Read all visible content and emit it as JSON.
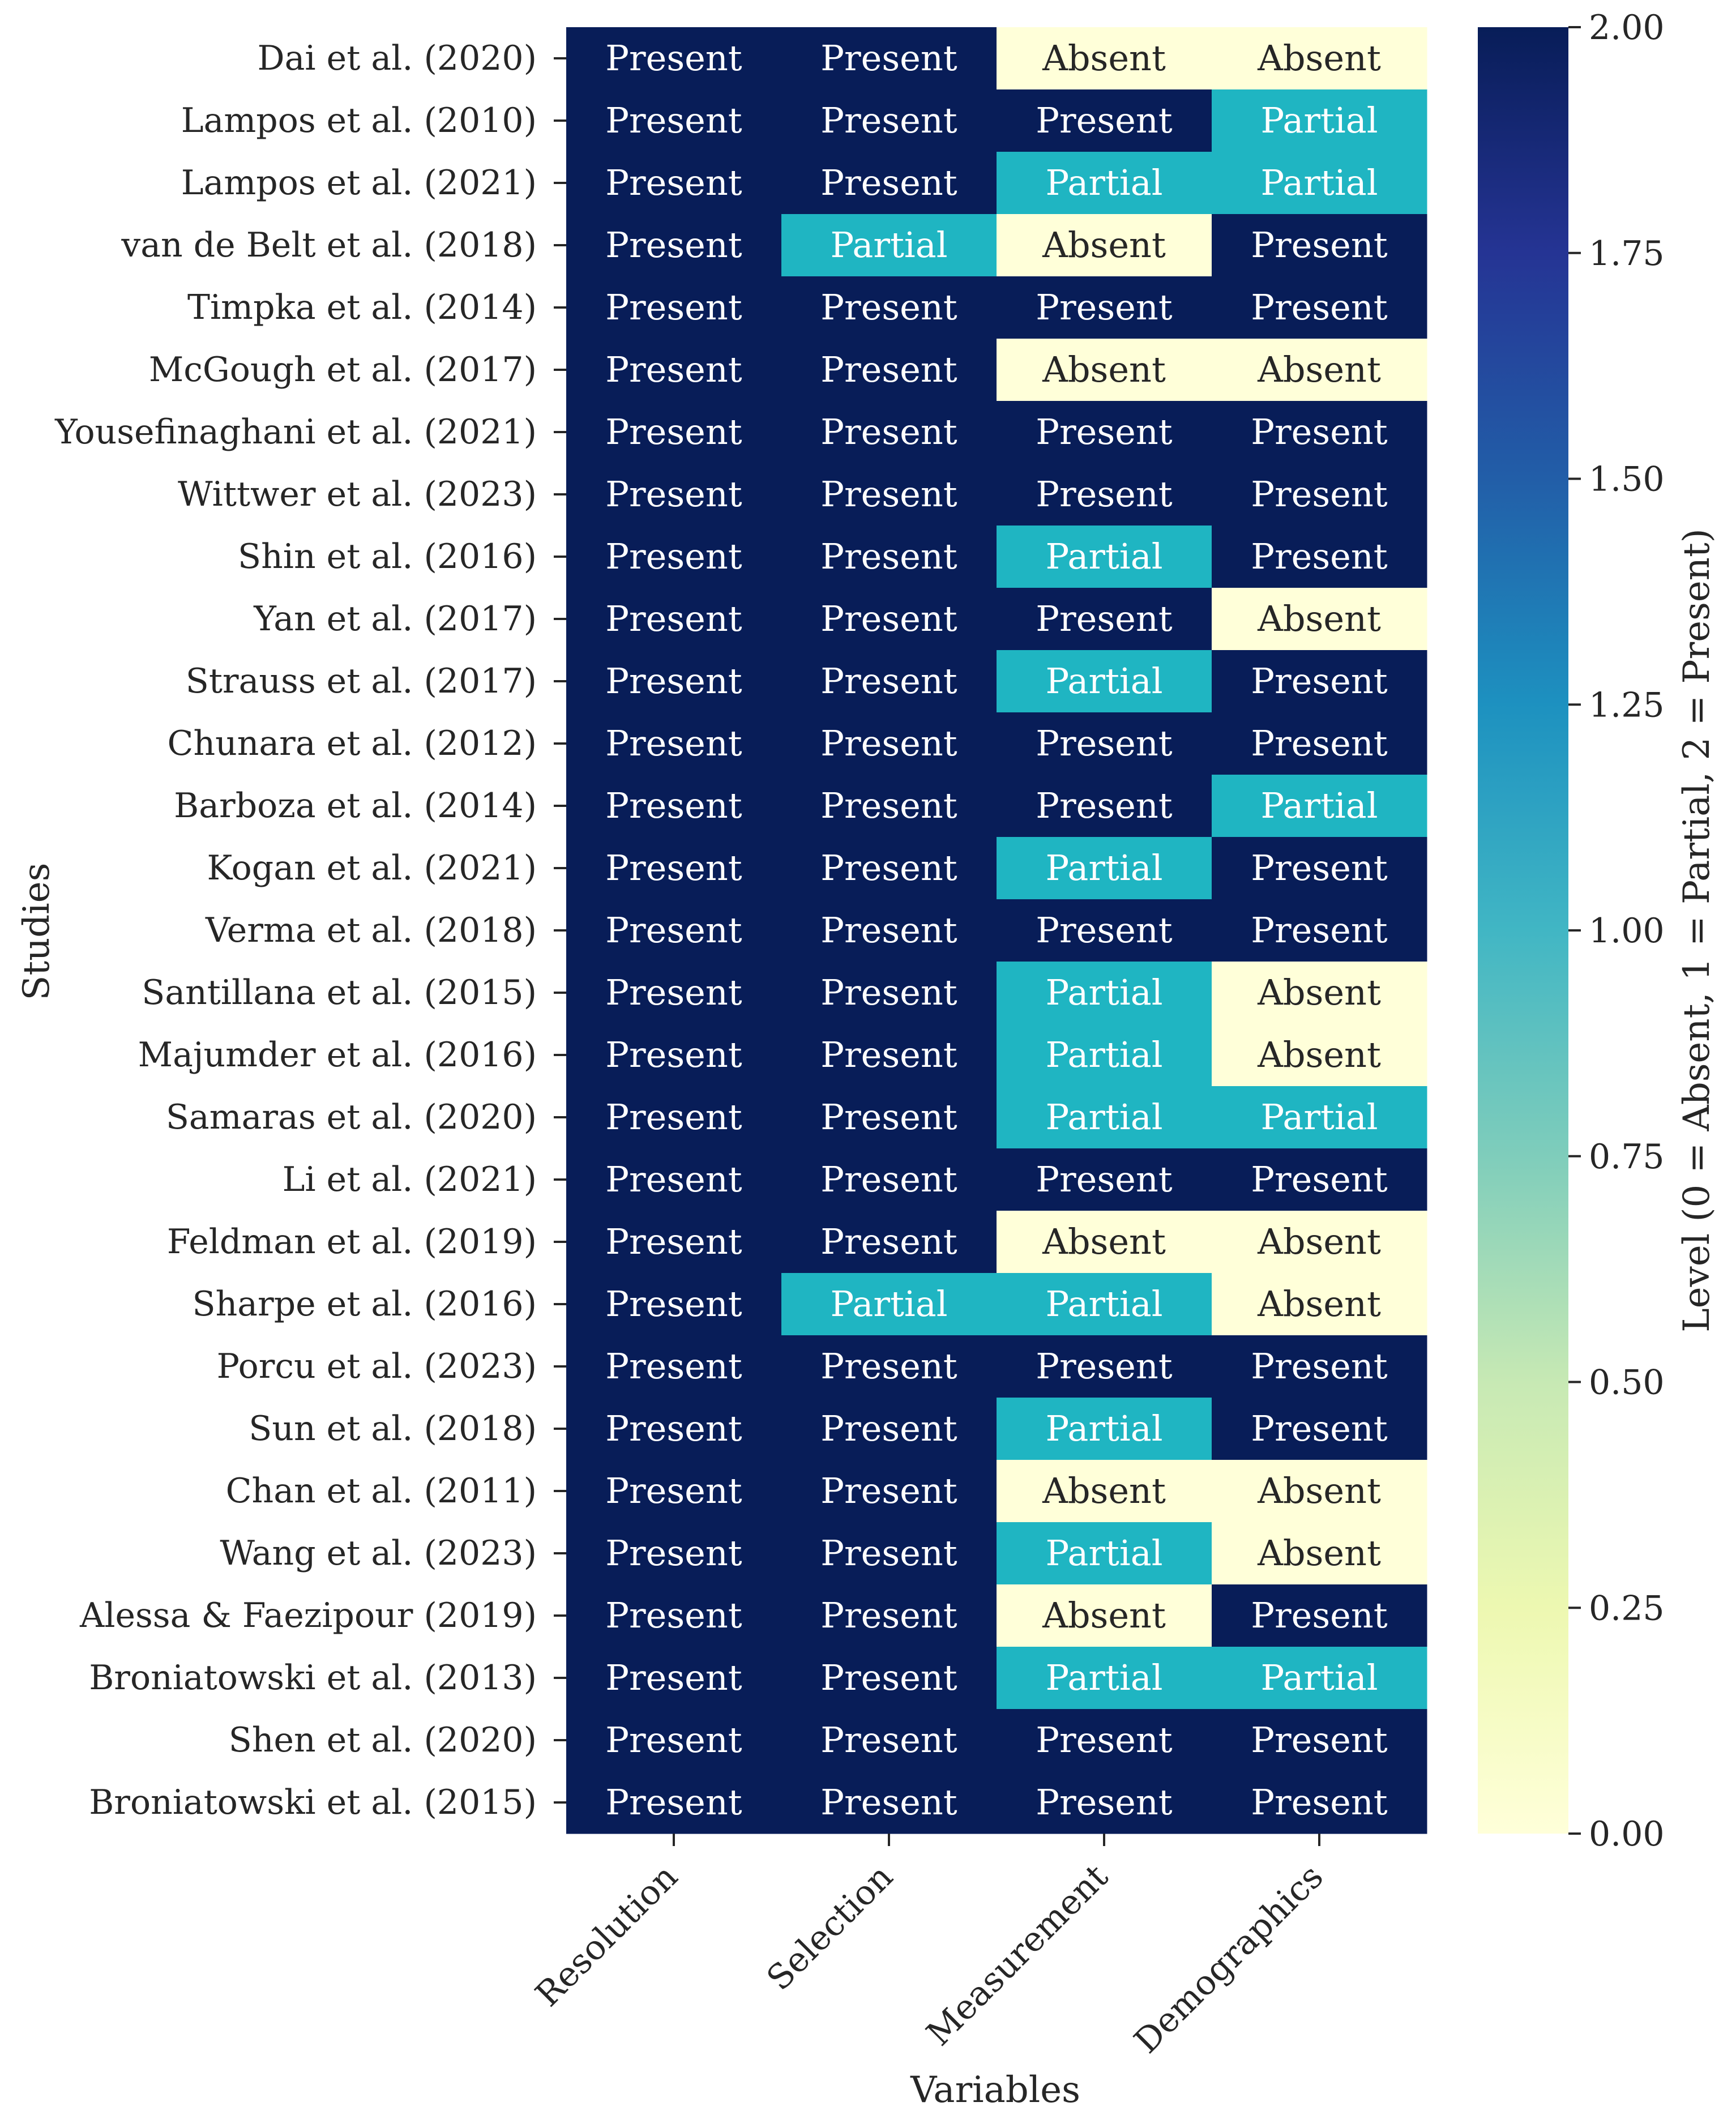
{
  "chart_data": {
    "type": "heatmap",
    "xlabel": "Variables",
    "ylabel": "Studies",
    "columns": [
      "Resolution",
      "Selection",
      "Measurement",
      "Demographics"
    ],
    "rows": [
      "Dai et al. (2020)",
      "Lampos et al. (2010)",
      "Lampos et al. (2021)",
      "van de Belt et al. (2018)",
      "Timpka et al. (2014)",
      "McGough et al. (2017)",
      "Yousefinaghani et al. (2021)",
      "Wittwer et al. (2023)",
      "Shin et al. (2016)",
      "Yan et al. (2017)",
      "Strauss et al. (2017)",
      "Chunara et al. (2012)",
      "Barboza et al. (2014)",
      "Kogan et al. (2021)",
      "Verma et al. (2018)",
      "Santillana et al. (2015)",
      "Majumder et al. (2016)",
      "Samaras et al. (2020)",
      "Li et al. (2021)",
      "Feldman et al. (2019)",
      "Sharpe et al. (2016)",
      "Porcu et al. (2023)",
      "Sun et al. (2018)",
      "Chan et al. (2011)",
      "Wang et al. (2023)",
      "Alessa & Faezipour (2019)",
      "Broniatowski et al. (2013)",
      "Shen et al. (2020)",
      "Broniatowski et al. (2015)"
    ],
    "values": [
      [
        2,
        2,
        0,
        0
      ],
      [
        2,
        2,
        2,
        1
      ],
      [
        2,
        2,
        1,
        1
      ],
      [
        2,
        1,
        0,
        2
      ],
      [
        2,
        2,
        2,
        2
      ],
      [
        2,
        2,
        0,
        0
      ],
      [
        2,
        2,
        2,
        2
      ],
      [
        2,
        2,
        2,
        2
      ],
      [
        2,
        2,
        1,
        2
      ],
      [
        2,
        2,
        2,
        0
      ],
      [
        2,
        2,
        1,
        2
      ],
      [
        2,
        2,
        2,
        2
      ],
      [
        2,
        2,
        2,
        1
      ],
      [
        2,
        2,
        1,
        2
      ],
      [
        2,
        2,
        2,
        2
      ],
      [
        2,
        2,
        1,
        0
      ],
      [
        2,
        2,
        1,
        0
      ],
      [
        2,
        2,
        1,
        1
      ],
      [
        2,
        2,
        2,
        2
      ],
      [
        2,
        2,
        0,
        0
      ],
      [
        2,
        1,
        1,
        0
      ],
      [
        2,
        2,
        2,
        2
      ],
      [
        2,
        2,
        1,
        2
      ],
      [
        2,
        2,
        0,
        0
      ],
      [
        2,
        2,
        1,
        0
      ],
      [
        2,
        2,
        0,
        2
      ],
      [
        2,
        2,
        1,
        1
      ],
      [
        2,
        2,
        2,
        2
      ],
      [
        2,
        2,
        2,
        2
      ]
    ],
    "level_labels": {
      "0": "Absent",
      "1": "Partial",
      "2": "Present"
    },
    "level_colors": {
      "0": "#ffffd9",
      "1": "#1fb5c2",
      "2": "#081d58"
    },
    "colorbar": {
      "label": "Level (0 = Absent, 1 = Partial, 2 = Present)",
      "range": [
        0,
        2
      ],
      "ticks": [
        "0.00",
        "0.25",
        "0.50",
        "0.75",
        "1.00",
        "1.25",
        "1.50",
        "1.75",
        "2.00"
      ],
      "colormap": "YlGnBu"
    }
  }
}
